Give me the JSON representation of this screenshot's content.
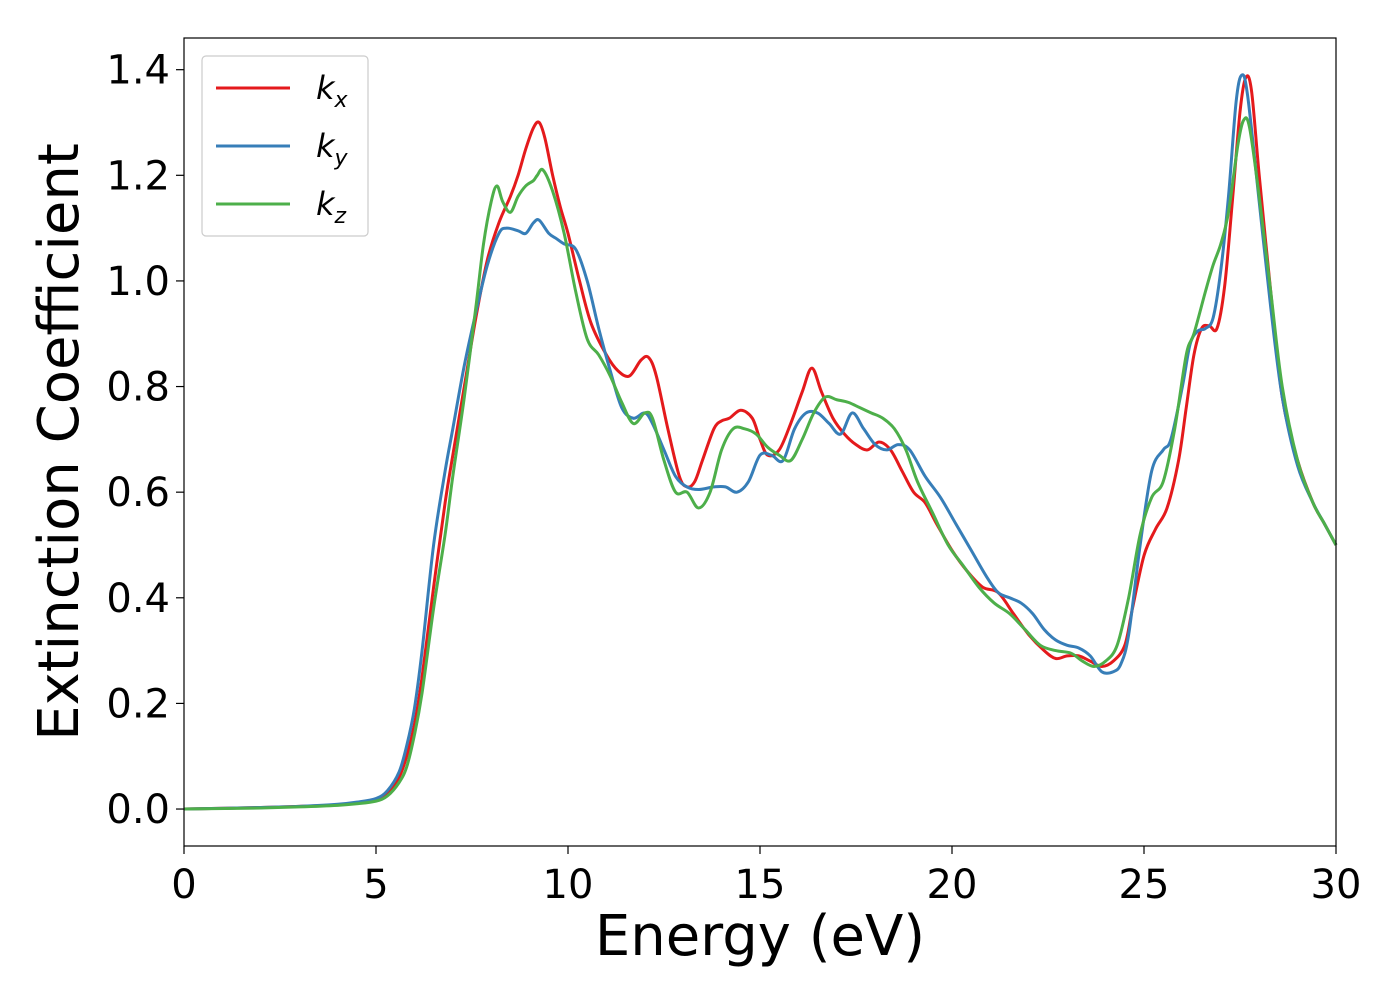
{
  "chart_data": {
    "type": "line",
    "title": "",
    "xlabel": "Energy (eV)",
    "ylabel": "Extinction Coefficient",
    "xlim": [
      0,
      30
    ],
    "ylim": [
      -0.07,
      1.46
    ],
    "xticks": [
      0,
      5,
      10,
      15,
      20,
      25,
      30
    ],
    "xtick_labels": [
      "0",
      "5",
      "10",
      "15",
      "20",
      "25",
      "30"
    ],
    "yticks": [
      0.0,
      0.2,
      0.4,
      0.6,
      0.8,
      1.0,
      1.2,
      1.4
    ],
    "ytick_labels": [
      "0.0",
      "0.2",
      "0.4",
      "0.6",
      "0.8",
      "1.0",
      "1.2",
      "1.4"
    ],
    "grid": false,
    "legend_position": "top-left",
    "series": [
      {
        "name": "k",
        "subscript": "x",
        "color": "#e41a1c",
        "x": [
          0,
          2,
          3,
          4,
          4.5,
          5,
          5.3,
          5.6,
          5.8,
          6.0,
          6.2,
          6.5,
          6.8,
          7.0,
          7.3,
          7.6,
          7.9,
          8.2,
          8.5,
          8.7,
          8.9,
          9.1,
          9.25,
          9.4,
          9.6,
          9.8,
          10.0,
          10.3,
          10.6,
          11.0,
          11.3,
          11.6,
          11.9,
          12.1,
          12.3,
          12.6,
          12.9,
          13.1,
          13.3,
          13.5,
          13.8,
          14.0,
          14.2,
          14.5,
          14.8,
          15.0,
          15.2,
          15.5,
          15.8,
          16.1,
          16.35,
          16.6,
          16.9,
          17.2,
          17.5,
          17.8,
          18.1,
          18.4,
          18.7,
          19.0,
          19.3,
          19.6,
          20.0,
          20.4,
          20.8,
          21.2,
          21.6,
          22.0,
          22.4,
          22.7,
          23.0,
          23.3,
          23.6,
          23.9,
          24.2,
          24.5,
          24.7,
          25.0,
          25.3,
          25.6,
          25.9,
          26.1,
          26.3,
          26.5,
          26.7,
          26.9,
          27.1,
          27.3,
          27.5,
          27.65,
          27.8,
          28.0,
          28.3,
          28.6,
          29.0,
          29.4,
          29.7,
          30.0
        ],
        "y": [
          0.0,
          0.003,
          0.005,
          0.008,
          0.012,
          0.018,
          0.03,
          0.06,
          0.1,
          0.16,
          0.25,
          0.42,
          0.58,
          0.67,
          0.8,
          0.93,
          1.04,
          1.11,
          1.16,
          1.2,
          1.25,
          1.29,
          1.3,
          1.27,
          1.2,
          1.14,
          1.09,
          1.0,
          0.92,
          0.86,
          0.83,
          0.82,
          0.85,
          0.855,
          0.82,
          0.72,
          0.63,
          0.61,
          0.62,
          0.66,
          0.72,
          0.735,
          0.74,
          0.755,
          0.74,
          0.7,
          0.67,
          0.68,
          0.73,
          0.79,
          0.835,
          0.79,
          0.74,
          0.71,
          0.69,
          0.68,
          0.695,
          0.68,
          0.64,
          0.6,
          0.58,
          0.54,
          0.49,
          0.45,
          0.42,
          0.41,
          0.37,
          0.33,
          0.3,
          0.285,
          0.29,
          0.29,
          0.28,
          0.27,
          0.28,
          0.31,
          0.38,
          0.48,
          0.53,
          0.57,
          0.66,
          0.76,
          0.86,
          0.91,
          0.915,
          0.91,
          0.99,
          1.15,
          1.32,
          1.385,
          1.36,
          1.2,
          0.98,
          0.78,
          0.66,
          0.58,
          0.54,
          0.5
        ]
      },
      {
        "name": "k",
        "subscript": "y",
        "color": "#377eb8",
        "x": [
          0,
          2,
          3,
          4,
          4.5,
          5,
          5.3,
          5.6,
          5.8,
          6.0,
          6.2,
          6.5,
          6.8,
          7.0,
          7.3,
          7.6,
          7.9,
          8.2,
          8.4,
          8.7,
          8.9,
          9.1,
          9.25,
          9.5,
          9.7,
          9.9,
          10.2,
          10.5,
          10.8,
          11.1,
          11.4,
          11.7,
          12.0,
          12.2,
          12.5,
          12.8,
          13.1,
          13.4,
          13.8,
          14.1,
          14.4,
          14.7,
          15.0,
          15.3,
          15.6,
          15.9,
          16.2,
          16.5,
          16.8,
          17.1,
          17.4,
          17.7,
          18.0,
          18.3,
          18.6,
          18.9,
          19.3,
          19.7,
          20.1,
          20.5,
          20.9,
          21.2,
          21.5,
          21.8,
          22.1,
          22.4,
          22.7,
          23.0,
          23.3,
          23.6,
          23.9,
          24.2,
          24.4,
          24.6,
          24.9,
          25.2,
          25.5,
          25.7,
          26.0,
          26.2,
          26.4,
          26.6,
          26.8,
          27.0,
          27.2,
          27.4,
          27.55,
          27.7,
          28.0,
          28.3,
          28.6,
          29.0,
          29.4,
          29.7,
          30.0
        ],
        "y": [
          0.0,
          0.003,
          0.005,
          0.009,
          0.013,
          0.02,
          0.035,
          0.07,
          0.12,
          0.19,
          0.3,
          0.5,
          0.64,
          0.72,
          0.84,
          0.94,
          1.03,
          1.09,
          1.1,
          1.095,
          1.09,
          1.11,
          1.115,
          1.09,
          1.08,
          1.07,
          1.06,
          1.0,
          0.91,
          0.83,
          0.76,
          0.74,
          0.75,
          0.73,
          0.68,
          0.63,
          0.61,
          0.605,
          0.61,
          0.61,
          0.6,
          0.62,
          0.67,
          0.67,
          0.66,
          0.72,
          0.75,
          0.75,
          0.73,
          0.71,
          0.75,
          0.72,
          0.69,
          0.68,
          0.69,
          0.68,
          0.63,
          0.59,
          0.54,
          0.49,
          0.44,
          0.41,
          0.4,
          0.39,
          0.37,
          0.34,
          0.32,
          0.31,
          0.305,
          0.29,
          0.26,
          0.26,
          0.275,
          0.33,
          0.5,
          0.64,
          0.68,
          0.7,
          0.8,
          0.88,
          0.905,
          0.91,
          0.93,
          1.02,
          1.16,
          1.34,
          1.39,
          1.35,
          1.15,
          0.95,
          0.78,
          0.65,
          0.58,
          0.54,
          0.5
        ]
      },
      {
        "name": "k",
        "subscript": "z",
        "color": "#4daf4a",
        "x": [
          0,
          2,
          3,
          4,
          4.5,
          5,
          5.3,
          5.6,
          5.8,
          6.0,
          6.2,
          6.5,
          6.8,
          7.0,
          7.3,
          7.6,
          7.8,
          8.0,
          8.15,
          8.3,
          8.5,
          8.7,
          8.9,
          9.1,
          9.2,
          9.35,
          9.6,
          9.9,
          10.2,
          10.5,
          10.8,
          11.1,
          11.4,
          11.7,
          12.0,
          12.2,
          12.5,
          12.8,
          13.1,
          13.4,
          13.7,
          14.0,
          14.3,
          14.6,
          14.9,
          15.2,
          15.5,
          15.8,
          16.1,
          16.4,
          16.7,
          17.0,
          17.3,
          17.6,
          17.9,
          18.2,
          18.5,
          18.8,
          19.1,
          19.5,
          19.9,
          20.3,
          20.7,
          21.1,
          21.5,
          21.9,
          22.3,
          22.7,
          23.1,
          23.4,
          23.7,
          24.0,
          24.3,
          24.6,
          24.9,
          25.2,
          25.5,
          25.8,
          26.1,
          26.3,
          26.6,
          26.8,
          27.0,
          27.2,
          27.45,
          27.6,
          27.75,
          28.0,
          28.3,
          28.6,
          29.0,
          29.4,
          29.7,
          30.0
        ],
        "y": [
          0.0,
          0.002,
          0.004,
          0.007,
          0.01,
          0.015,
          0.025,
          0.05,
          0.08,
          0.14,
          0.22,
          0.38,
          0.52,
          0.63,
          0.78,
          0.95,
          1.07,
          1.15,
          1.18,
          1.15,
          1.13,
          1.16,
          1.18,
          1.19,
          1.2,
          1.21,
          1.17,
          1.09,
          0.98,
          0.89,
          0.86,
          0.82,
          0.77,
          0.73,
          0.75,
          0.74,
          0.66,
          0.6,
          0.6,
          0.57,
          0.6,
          0.68,
          0.72,
          0.72,
          0.71,
          0.685,
          0.67,
          0.66,
          0.7,
          0.75,
          0.78,
          0.775,
          0.77,
          0.76,
          0.75,
          0.74,
          0.72,
          0.68,
          0.62,
          0.56,
          0.5,
          0.46,
          0.42,
          0.39,
          0.37,
          0.34,
          0.31,
          0.3,
          0.295,
          0.28,
          0.27,
          0.28,
          0.31,
          0.4,
          0.52,
          0.59,
          0.62,
          0.72,
          0.86,
          0.9,
          0.98,
          1.03,
          1.07,
          1.13,
          1.26,
          1.305,
          1.29,
          1.16,
          0.98,
          0.8,
          0.66,
          0.58,
          0.54,
          0.5
        ]
      }
    ]
  }
}
